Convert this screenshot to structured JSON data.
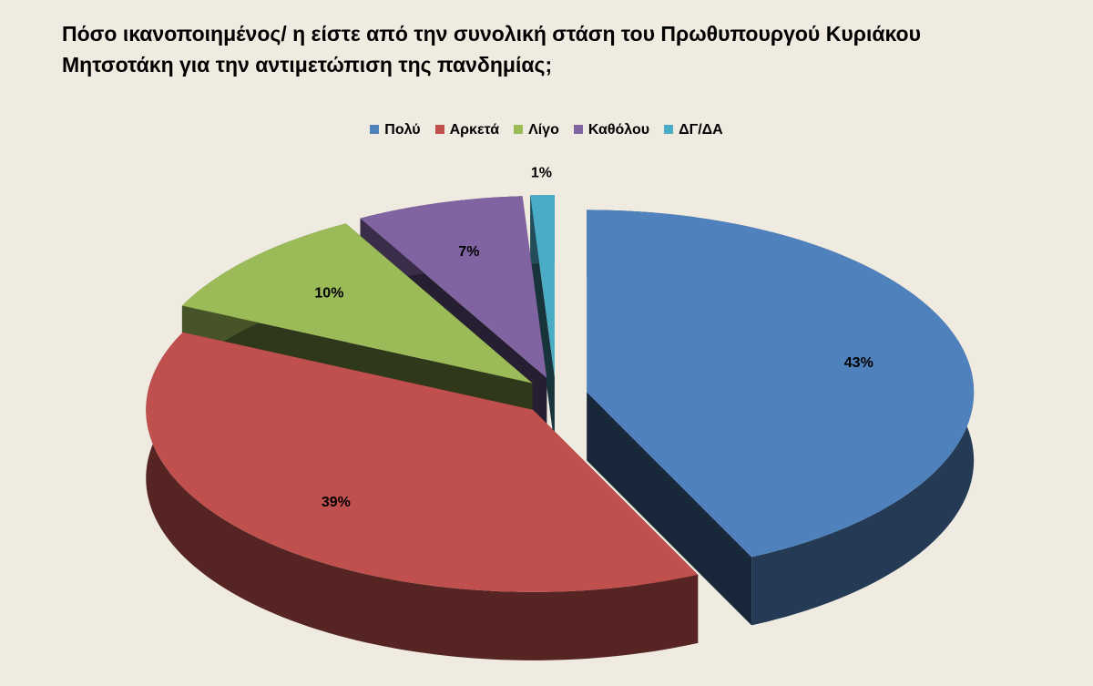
{
  "chart_data": {
    "type": "pie",
    "title": "Πόσο ικανοποιημένος/ η είστε από την συνολική στάση του Πρωθυπουργού Κυριάκου Μητσοτάκη για την αντιμετώπιση της πανδημίας;",
    "categories": [
      "Πολύ",
      "Αρκετά",
      "Λίγο",
      "Καθόλου",
      "ΔΓ/ΔΑ"
    ],
    "values": [
      43,
      39,
      10,
      7,
      1
    ],
    "value_labels": [
      "43%",
      "39%",
      "10%",
      "7%",
      "1%"
    ],
    "colors": [
      "#4f81bd",
      "#c0504d",
      "#9bbb59",
      "#8064a2",
      "#4bacc6"
    ],
    "legend": "top"
  }
}
